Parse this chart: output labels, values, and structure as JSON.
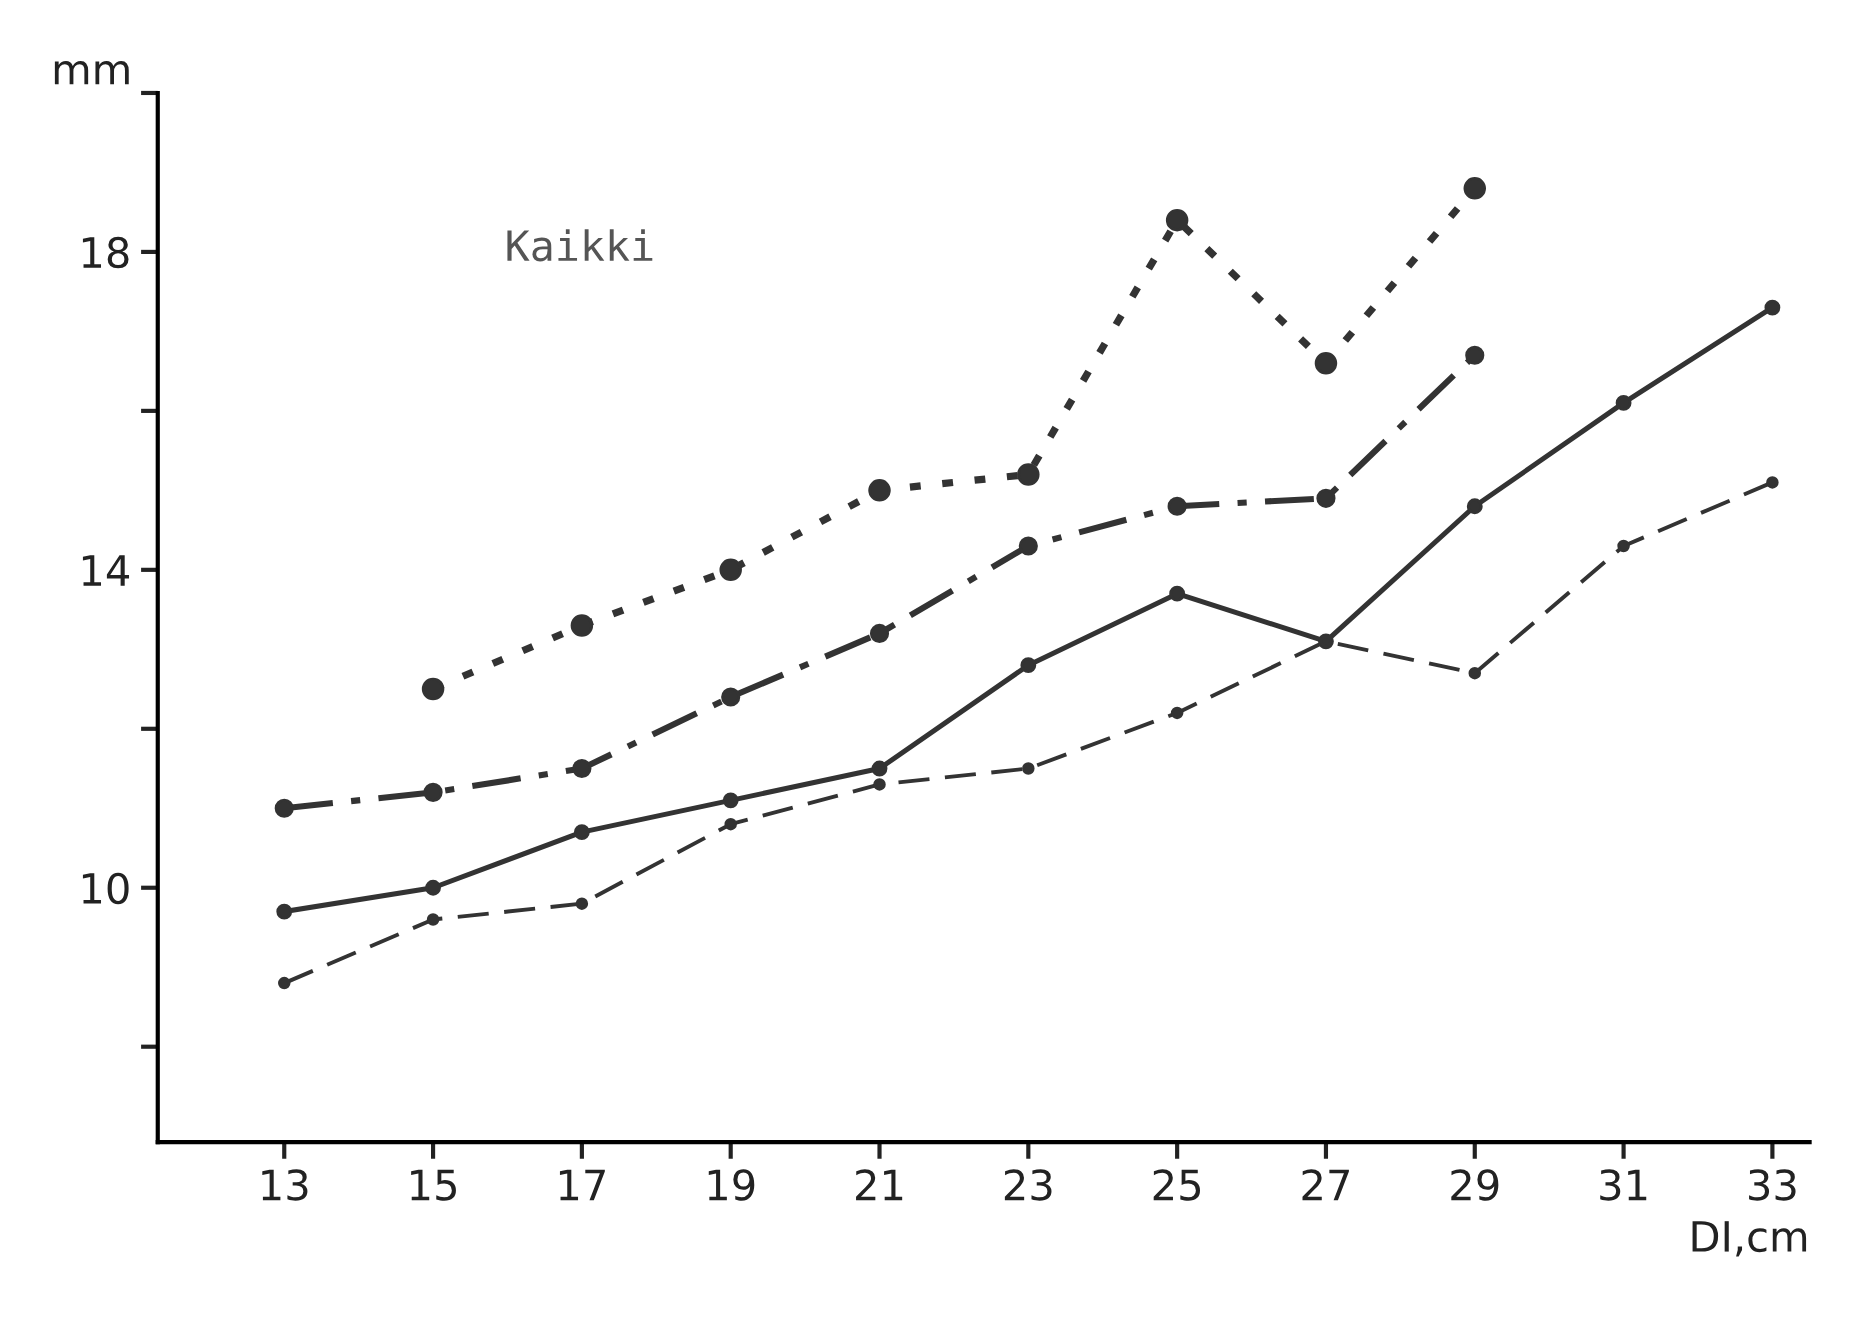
{
  "chart_data": {
    "type": "line",
    "xlabel": "DI,cm",
    "ylabel": "mm",
    "annotations": [
      "Kaikki"
    ],
    "x": [
      13,
      15,
      17,
      19,
      21,
      23,
      25,
      27,
      29,
      31,
      33
    ],
    "xlim": [
      11.3,
      33.5
    ],
    "xticks": [
      13,
      15,
      17,
      19,
      21,
      23,
      25,
      27,
      29,
      31,
      33
    ],
    "ylim": [
      6.8,
      20
    ],
    "yticks": [
      {
        "value": 8,
        "label": null
      },
      10,
      {
        "value": 12,
        "label": null
      },
      14,
      {
        "value": 16,
        "label": null
      },
      18,
      {
        "value": 20,
        "label": null
      }
    ],
    "grid": false,
    "legend": false,
    "marker": "circle",
    "series": [
      {
        "color": "#333333",
        "line_style": "dotted",
        "x": [
          15,
          17,
          19,
          21,
          23,
          25,
          27,
          29
        ],
        "values": [
          12.5,
          13.3,
          14.0,
          15.0,
          15.2,
          18.4,
          16.6,
          18.8
        ]
      },
      {
        "color": "#333333",
        "line_style": "dashdot",
        "x": [
          13,
          15,
          17,
          19,
          21,
          23,
          25,
          27,
          29
        ],
        "values": [
          11.0,
          11.2,
          11.5,
          12.4,
          13.2,
          14.3,
          14.8,
          14.9,
          16.7
        ]
      },
      {
        "color": "#333333",
        "line_style": "solid",
        "values": [
          9.7,
          10.0,
          10.7,
          11.1,
          11.5,
          12.8,
          13.7,
          13.1,
          14.8,
          16.1,
          17.3
        ]
      },
      {
        "color": "#333333",
        "line_style": "dashed",
        "values": [
          8.8,
          9.6,
          9.8,
          10.8,
          11.3,
          11.5,
          12.2,
          13.1,
          12.7,
          14.3,
          15.1
        ]
      }
    ]
  }
}
